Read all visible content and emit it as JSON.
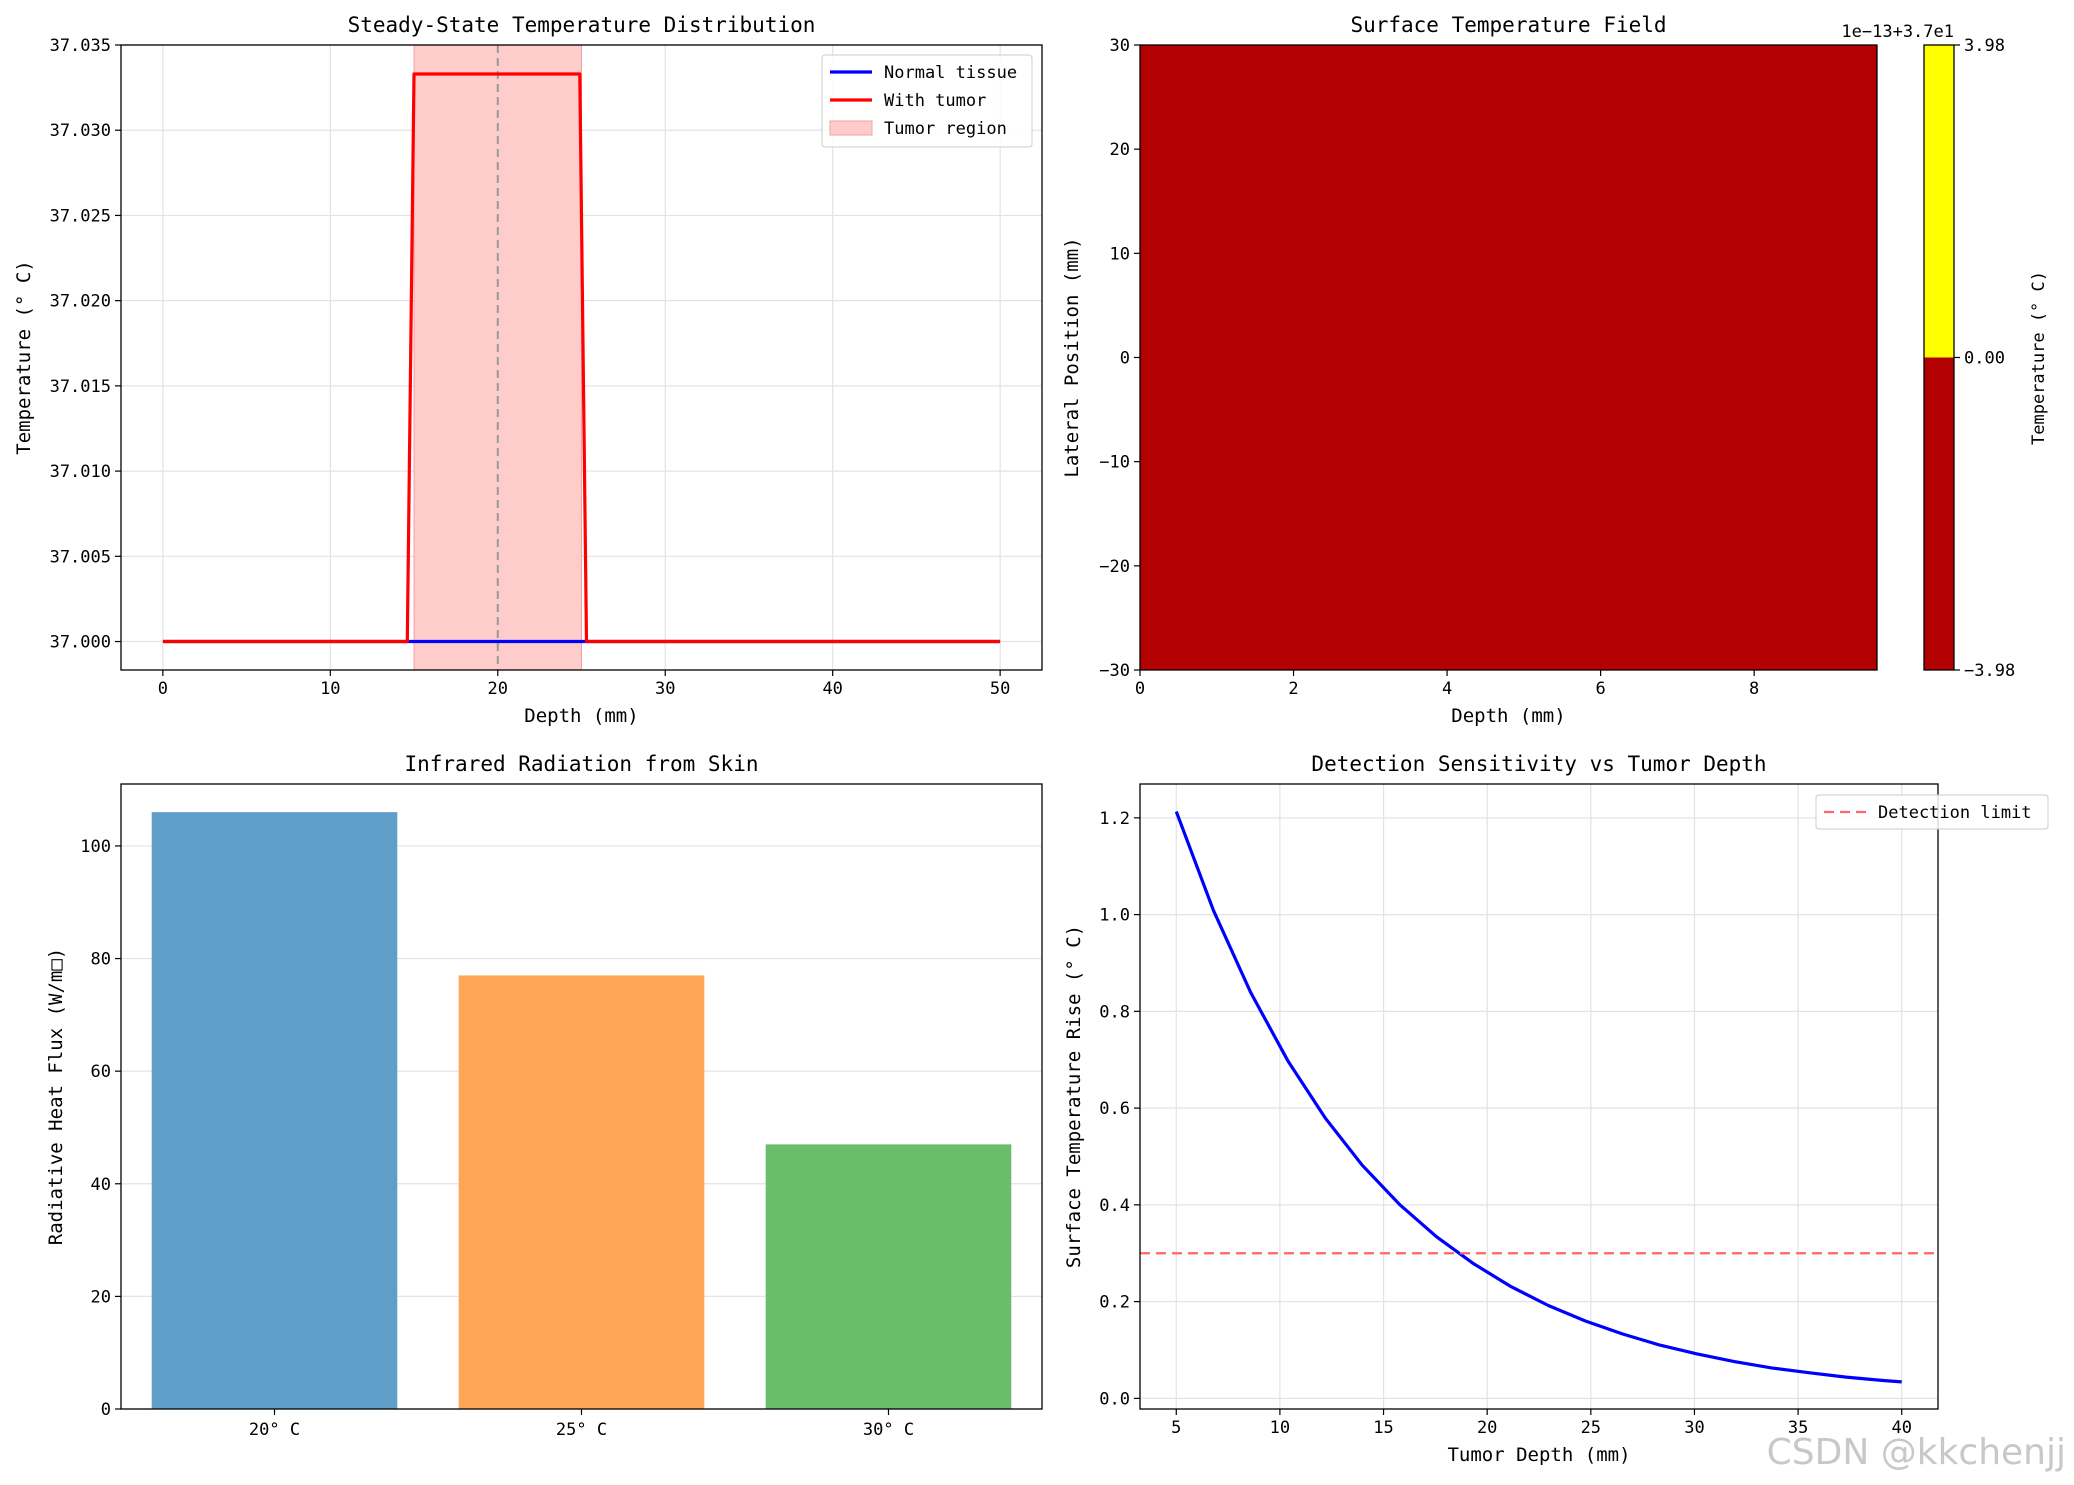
{
  "chart_data": [
    {
      "id": "p1",
      "type": "line",
      "title": "Steady-State Temperature Distribution",
      "xlabel": "Depth (mm)",
      "ylabel": "Temperature (° C)",
      "xlim": [
        -2.5,
        52.5
      ],
      "ylim": [
        36.99833,
        37.035
      ],
      "xticks": [
        0,
        10,
        20,
        30,
        40,
        50
      ],
      "yticks": [
        37.0,
        37.005,
        37.01,
        37.015,
        37.02,
        37.025,
        37.03,
        37.035
      ],
      "ytick_labels": [
        "37.000",
        "37.005",
        "37.010",
        "37.015",
        "37.020",
        "37.025",
        "37.030",
        "37.035"
      ],
      "grid": true,
      "legend_position": "upper right",
      "series": [
        {
          "name": "Normal tissue",
          "color": "#0000ff",
          "x": [
            0,
            50
          ],
          "y": [
            37.0,
            37.0
          ]
        },
        {
          "name": "With tumor",
          "color": "#ff0000",
          "x": [
            0,
            14.6,
            15.0,
            24.9,
            25.3,
            50
          ],
          "y": [
            37.0,
            37.0,
            37.0333,
            37.0333,
            37.0,
            37.0
          ]
        }
      ],
      "shaded_region": {
        "name": "Tumor region",
        "color": "#ffcccc",
        "x": [
          15,
          25
        ]
      },
      "vline": {
        "x": 20,
        "color": "#999999",
        "style": "dashed"
      }
    },
    {
      "id": "p2",
      "type": "heatmap",
      "title": "Surface Temperature Field",
      "xlabel": "Depth (mm)",
      "ylabel": "Lateral Position (mm)",
      "xlim": [
        0,
        9.6
      ],
      "ylim": [
        -30,
        30
      ],
      "xticks": [
        0,
        2,
        4,
        6,
        8
      ],
      "yticks": [
        -30,
        -20,
        -10,
        0,
        10,
        20,
        30
      ],
      "ytick_labels": [
        "−30",
        "−20",
        "−10",
        "0",
        "10",
        "20",
        "30"
      ],
      "fill_color": "#b30000",
      "colorbar": {
        "label": "Temperature (° C)",
        "offset_text": "1e−13+3.7e1",
        "ticks": [
          -3.98,
          0.0,
          3.98
        ],
        "tick_labels": [
          "−3.98",
          "0.00",
          "3.98"
        ],
        "colors": [
          {
            "from": -3.98,
            "to": 0.0,
            "color": "#b30000"
          },
          {
            "from": 0.0,
            "to": 3.98,
            "color": "#ffff00"
          }
        ]
      }
    },
    {
      "id": "p3",
      "type": "bar",
      "title": "Infrared Radiation from Skin",
      "xlabel": "",
      "ylabel": "Radiative Heat Flux (W/m□)",
      "categories": [
        "20° C",
        "25° C",
        "30° C"
      ],
      "values": [
        106,
        77,
        47
      ],
      "colors": [
        "#5f9ec9",
        "#ffa555",
        "#6abd6a"
      ],
      "ylim": [
        0,
        111
      ],
      "yticks": [
        0,
        20,
        40,
        60,
        80,
        100
      ],
      "grid": true
    },
    {
      "id": "p4",
      "type": "line",
      "title": "Detection Sensitivity vs Tumor Depth",
      "xlabel": "Tumor Depth (mm)",
      "ylabel": "Surface Temperature Rise (° C)",
      "xlim": [
        3.25,
        41.75
      ],
      "ylim": [
        -0.022,
        1.27
      ],
      "xticks": [
        5,
        10,
        15,
        20,
        25,
        30,
        35,
        40
      ],
      "yticks": [
        0.0,
        0.2,
        0.4,
        0.6,
        0.8,
        1.0,
        1.2
      ],
      "ytick_labels": [
        "0.0",
        "0.2",
        "0.4",
        "0.6",
        "0.8",
        "1.0",
        "1.2"
      ],
      "grid": true,
      "legend_position": "upper right",
      "series": [
        {
          "name": "",
          "color": "#0000ff",
          "x": [
            5,
            6.79,
            8.59,
            10.38,
            12.18,
            13.97,
            15.77,
            17.56,
            19.36,
            21.15,
            22.95,
            24.74,
            26.54,
            28.33,
            30.13,
            31.92,
            33.72,
            35.51,
            37.31,
            39.1,
            40
          ],
          "y": [
            1.213,
            1.009,
            0.839,
            0.698,
            0.58,
            0.482,
            0.401,
            0.334,
            0.278,
            0.231,
            0.192,
            0.16,
            0.133,
            0.11,
            0.092,
            0.076,
            0.063,
            0.053,
            0.044,
            0.037,
            0.034
          ]
        }
      ],
      "hline": {
        "name": "Detection limit",
        "y": 0.3,
        "color": "#ff6666",
        "style": "dashed"
      }
    }
  ],
  "watermark": "CSDN @kkchenjj"
}
